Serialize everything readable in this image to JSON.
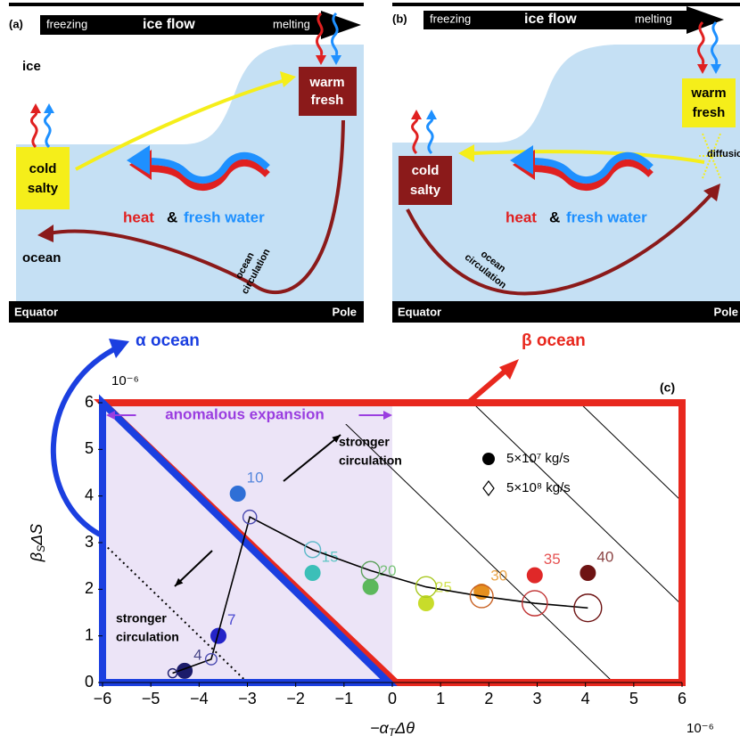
{
  "panel_a": {
    "label": "(a)",
    "freezing": "freezing",
    "ice_flow": "ice flow",
    "melting": "melting",
    "ice": "ice",
    "ocean": "ocean",
    "warm": "warm",
    "fresh": "fresh",
    "cold": "cold",
    "salty": "salty",
    "heat": "heat",
    "amp": "&",
    "fresh_water": "fresh water",
    "circ1": "ocean",
    "circ2": "circulation",
    "equator": "Equator",
    "pole": "Pole"
  },
  "panel_b": {
    "label": "(b)",
    "freezing": "freezing",
    "ice_flow": "ice flow",
    "melting": "melting",
    "warm": "warm",
    "fresh": "fresh",
    "diffusion": "diffusion",
    "cold": "cold",
    "salty": "salty",
    "heat": "heat",
    "amp": "&",
    "fresh_water": "fresh water",
    "circ1": "ocean",
    "circ2": "circulation",
    "equator": "Equator",
    "pole": "Pole"
  },
  "chart_data": {
    "type": "scatter",
    "panel_label": "(c)",
    "xlabel_parts": [
      "−α",
      "T",
      "Δθ"
    ],
    "ylabel_parts": [
      "β",
      "S",
      "ΔS"
    ],
    "x_multiplier": "10⁻⁶",
    "y_multiplier": "10⁻⁶",
    "xlim": [
      -6,
      6
    ],
    "ylim": [
      0,
      6
    ],
    "xticks": [
      {
        "value": -6,
        "label": "−6"
      },
      {
        "value": -5,
        "label": "−5"
      },
      {
        "value": -4,
        "label": "−4"
      },
      {
        "value": -3,
        "label": "−3"
      },
      {
        "value": -2,
        "label": "−2"
      },
      {
        "value": -1,
        "label": "−1"
      },
      0,
      1,
      2,
      3,
      4,
      5,
      6
    ],
    "yticks": [
      0,
      1,
      2,
      3,
      4,
      5,
      6
    ],
    "alpha_region_label": "α ocean",
    "beta_region_label": "β ocean",
    "anomalous_expansion": "anomalous expansion",
    "annotation_upper": [
      "stronger",
      "circulation"
    ],
    "annotation_lower": [
      "stronger",
      "circulation"
    ],
    "isolines": [
      4.58,
      7.66,
      9.88
    ],
    "dotted_isoline": -3,
    "series": [
      {
        "name": "5×10⁷ kg/s",
        "marker": "filled",
        "x": [
          -4.3,
          -3.6,
          -3.2,
          -1.65,
          -0.45,
          0.7,
          1.85,
          2.95,
          4.05
        ],
        "values": [
          0.25,
          1.0,
          4.05,
          2.35,
          2.05,
          1.7,
          1.95,
          2.3,
          2.35
        ],
        "colors": [
          "#1c1c6b",
          "#2424c8",
          "#2f6fd6",
          "#3cbfb8",
          "#5cb85c",
          "#c8dc2a",
          "#e6901e",
          "#e02828",
          "#6e1414"
        ],
        "point_labels": [
          4,
          7,
          10,
          15,
          20,
          25,
          30,
          35,
          40
        ]
      },
      {
        "name": "5×10⁸ kg/s",
        "marker": "open",
        "x": [
          -4.55,
          -3.75,
          -2.95,
          -1.65,
          -0.45,
          0.7,
          1.85,
          2.95,
          4.05
        ],
        "values": [
          0.2,
          0.5,
          3.55,
          2.85,
          2.4,
          2.05,
          1.85,
          1.7,
          1.6
        ],
        "colors": [
          "#1c1c6b",
          "#4a4ab0",
          "#4a4ab0",
          "#5ab8c8",
          "#5aa05a",
          "#a8c820",
          "#c86020",
          "#c03030",
          "#6e1414"
        ]
      }
    ]
  }
}
